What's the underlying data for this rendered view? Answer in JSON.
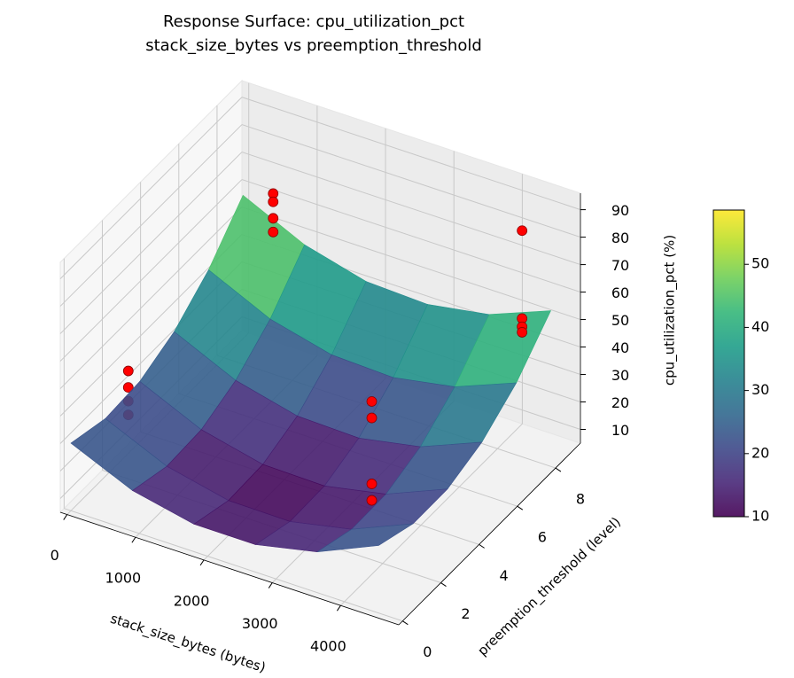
{
  "chart_data": {
    "type": "surface3d",
    "title": "Response Surface: cpu_utilization_pct",
    "subtitle": "stack_size_bytes vs preemption_threshold",
    "x_label": "stack_size_bytes (bytes)",
    "y_label": "preemption_threshold (level)",
    "z_label": "cpu_utilization_pct (%)",
    "xlim": [
      -100,
      4850
    ],
    "ylim": [
      -0.2,
      9.3
    ],
    "zlim": [
      5,
      96
    ],
    "xticks": [
      0,
      1000,
      2000,
      3000,
      4000
    ],
    "yticks": [
      0,
      2,
      4,
      6,
      8
    ],
    "zticks": [
      10,
      20,
      30,
      40,
      50,
      60,
      70,
      80,
      90
    ],
    "colormap": "viridis",
    "colorbar": {
      "clim": [
        10,
        58.6
      ],
      "ticks": [
        10,
        20,
        30,
        40,
        50
      ]
    },
    "grid": true,
    "surface": {
      "x": [
        0,
        900,
        1800,
        2700,
        3600,
        4500
      ],
      "y": [
        0,
        1.8,
        3.6,
        5.4,
        7.2,
        9
      ],
      "z": [
        [
          29.6,
          19.8,
          15.0,
          15.0,
          19.8,
          29.6
        ],
        [
          26.0,
          16.1,
          11.1,
          10.9,
          15.5,
          25.0
        ],
        [
          27.0,
          16.9,
          11.7,
          11.3,
          15.8,
          25.1
        ],
        [
          32.6,
          22.3,
          16.8,
          16.2,
          20.5,
          29.6
        ],
        [
          42.6,
          32.1,
          26.5,
          25.7,
          29.8,
          38.7
        ],
        [
          57.2,
          46.6,
          40.7,
          39.8,
          43.6,
          52.4
        ]
      ]
    },
    "scatter": {
      "color": "#ff0000",
      "x": [
        0,
        0,
        0,
        0,
        1000,
        1000,
        1000,
        1000,
        3700,
        3700,
        3700,
        3700,
        4500,
        4500,
        4500,
        4500
      ],
      "y": [
        3,
        3,
        3,
        3,
        7,
        7,
        7,
        7,
        2.5,
        2.5,
        2.5,
        2.5,
        7.5,
        7.5,
        7.5,
        7.5
      ],
      "z": [
        35,
        29,
        24,
        19,
        80,
        77,
        71,
        66,
        58,
        52,
        28,
        22,
        92,
        60,
        57,
        55
      ]
    }
  }
}
